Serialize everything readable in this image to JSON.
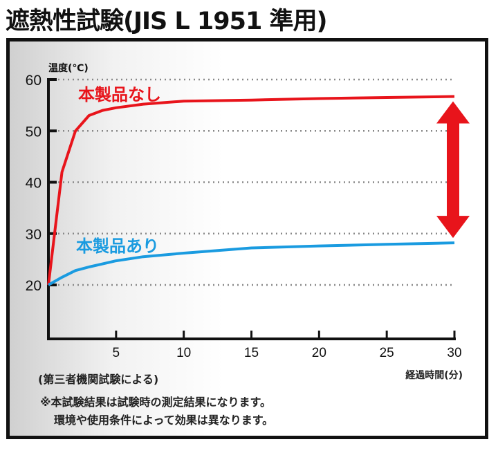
{
  "title": "遮熱性試験(JIS L 1951 準用)",
  "chart_data": {
    "type": "line",
    "title": "遮熱性試験(JIS L 1951 準用)",
    "xlabel": "経過時間(分)",
    "ylabel": "温度(℃)",
    "xlim": [
      0,
      30
    ],
    "ylim": [
      10,
      60
    ],
    "xticks": [
      5,
      10,
      15,
      20,
      25,
      30
    ],
    "yticks": [
      20,
      30,
      40,
      50,
      60
    ],
    "grid": "horizontal dotted",
    "series": [
      {
        "name": "本製品なし",
        "color": "#e8141b",
        "x": [
          0,
          0.5,
          1,
          2,
          3,
          4,
          5,
          7,
          10,
          15,
          20,
          25,
          30
        ],
        "y": [
          20,
          31,
          42,
          50,
          53,
          54,
          54.5,
          55.2,
          55.8,
          56.0,
          56.3,
          56.5,
          56.7
        ]
      },
      {
        "name": "本製品あり",
        "color": "#1a9be0",
        "x": [
          0,
          1,
          2,
          3,
          5,
          7,
          10,
          15,
          20,
          25,
          30
        ],
        "y": [
          20,
          21.5,
          22.8,
          23.5,
          24.7,
          25.5,
          26.2,
          27.2,
          27.6,
          27.9,
          28.2
        ]
      }
    ],
    "annotation": "double-headed arrow between series at 30 min"
  },
  "notes": {
    "source": "(第三者機関試験による)",
    "disclaimer_1": "※本試験結果は試験時の測定結果になります。",
    "disclaimer_2": "環境や使用条件によって効果は異なります。"
  }
}
